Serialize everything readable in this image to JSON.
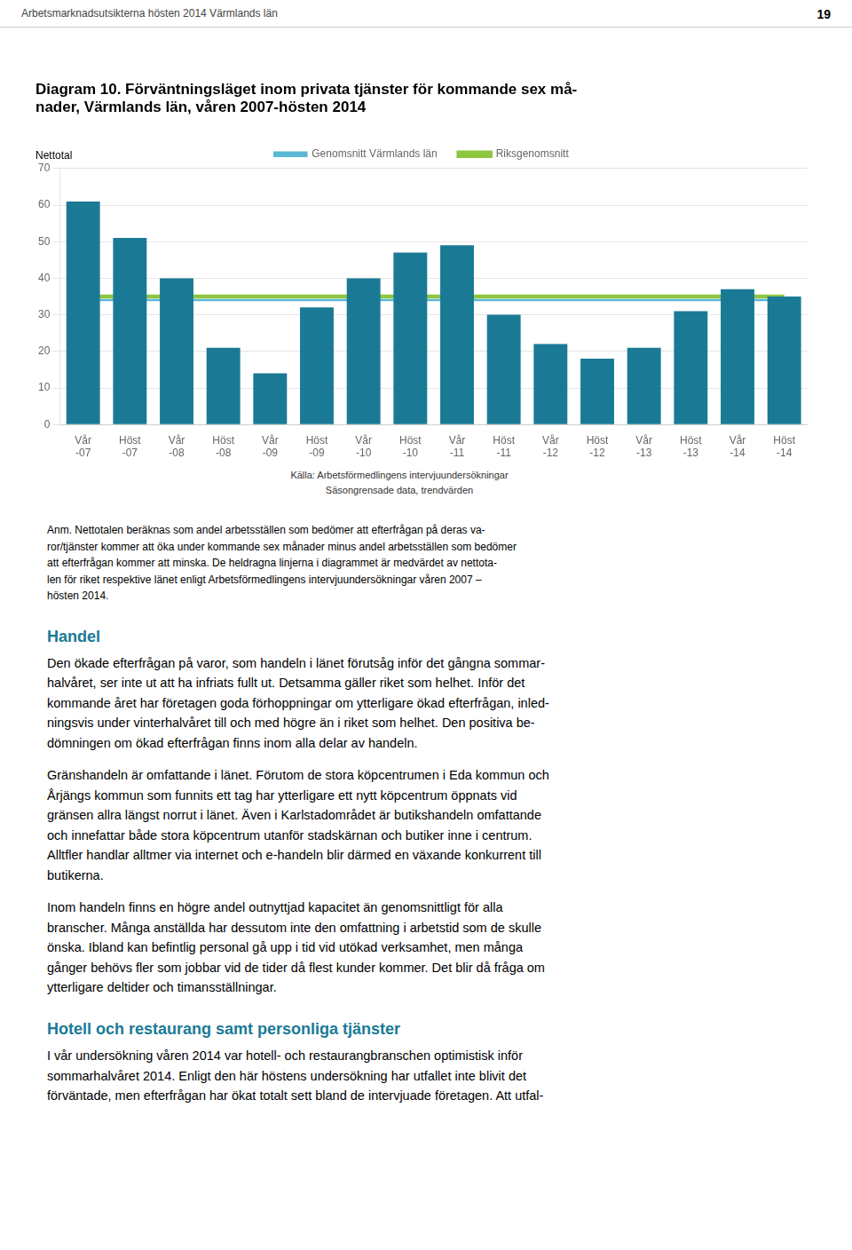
{
  "chart_data": {
    "type": "bar",
    "title": [
      "Diagram 10. Förväntningsläget inom privata tjänster för kommande sex må-",
      "nader, Värmlands län, våren 2007-hösten 2014"
    ],
    "y_label": "Nettotal",
    "categories": [
      "Vår\n-07",
      "Höst\n-07",
      "Vår\n-08",
      "Höst\n-08",
      "Vår\n-09",
      "Höst\n-09",
      "Vår\n-10",
      "Höst\n-10",
      "Vår\n-11",
      "Höst\n-11",
      "Vår\n-12",
      "Höst\n-12",
      "Vår\n-13",
      "Höst\n-13",
      "Vår\n-14",
      "Höst\n-14"
    ],
    "series": [
      {
        "type": "bar",
        "color": "#1a7a96",
        "values": [
          61,
          51,
          40,
          21,
          14,
          32,
          40,
          47,
          49,
          30,
          22,
          18,
          21,
          31,
          37,
          35
        ]
      },
      {
        "name": "Genomsnitt Värmlands län",
        "type": "line",
        "color": "#5bb8d4",
        "values": [
          34,
          34,
          34,
          34,
          34,
          34,
          34,
          34,
          34,
          34,
          34,
          34,
          34,
          34,
          34,
          34
        ]
      },
      {
        "name": "Riksgenomsnitt",
        "type": "line",
        "color": "#8dc63f",
        "values": [
          35,
          35,
          35,
          35,
          35,
          35,
          35,
          35,
          35,
          35,
          35,
          35,
          35,
          35,
          35,
          35
        ]
      }
    ],
    "ylim": [
      0,
      70
    ],
    "yticks": [
      0,
      10,
      20,
      30,
      40,
      50,
      60,
      70
    ],
    "grid": true,
    "legend": "top"
  },
  "page": {
    "header": "Arbetsmarknadsutsikterna hösten 2014 Värmlands län",
    "page_number": "19",
    "source": "Källa: Arbetsförmedlingens intervjuundersökningar\nSäsongrensade data, trendvärden",
    "note": "Anm. Nettotalen beräknas som andel arbetsställen som bedömer att efterfrågan på deras va-\nror/tjänster kommer att öka under kommande sex månader minus andel arbetsställen som bedömer\natt efterfrågan kommer att minska. De heldragna linjerna i diagrammet är medvärdet av nettota-\nlen för riket respektive länet enligt Arbetsförmedlingens intervjuundersökningar våren 2007 –\nhösten 2014.",
    "sections": [
      {
        "heading": "Handel",
        "color": "#1a7a96",
        "paragraphs": [
          "Den ökade efterfrågan på varor, som handeln i länet förutsåg inför det gångna sommar-\nhalvåret, ser inte ut att ha infriats fullt ut. Detsamma gäller riket som helhet. Inför det\nkommande året har företagen goda förhoppningar om ytterligare ökad efterfrågan, inled-\nningsvis under vinterhalvåret till och med högre än i riket som helhet. Den positiva be-\ndömningen om ökad efterfrågan finns inom alla delar av handeln.",
          "Gränshandeln är omfattande i länet. Förutom de stora köpcentrumen i Eda kommun och\nÅrjängs kommun som funnits ett tag har ytterligare ett nytt köpcentrum öppnats vid\ngränsen allra längst norrut i länet. Även i Karlstadområdet är butikshandeln omfattande\noch innefattar både stora köpcentrum utanför stadskärnan och butiker inne i centrum.\nAlltfler handlar alltmer via internet och e-handeln blir därmed en växande konkurrent till\nbutikerna.",
          "Inom handeln finns en högre andel outnyttjad kapacitet än genomsnittligt för alla\nbranscher. Många anställda har dessutom inte den omfattning i arbetstid som de skulle\nönska. Ibland kan befintlig personal gå upp i tid vid utökad verksamhet, men många\ngånger behövs fler som jobbar vid de tider då flest kunder kommer. Det blir då fråga om\nytterligare deltider och timansställningar."
        ]
      },
      {
        "heading": "Hotell och restaurang samt personliga tjänster",
        "color": "#1a7a96",
        "paragraphs": [
          "I vår undersökning våren 2014 var hotell- och restaurangbranschen optimistisk inför\nsommarhalvåret 2014. Enligt den här höstens undersökning har utfallet inte blivit det\nförväntade, men efterfrågan har ökat totalt sett bland de intervjuade företagen. Att utfal-"
        ]
      }
    ]
  }
}
